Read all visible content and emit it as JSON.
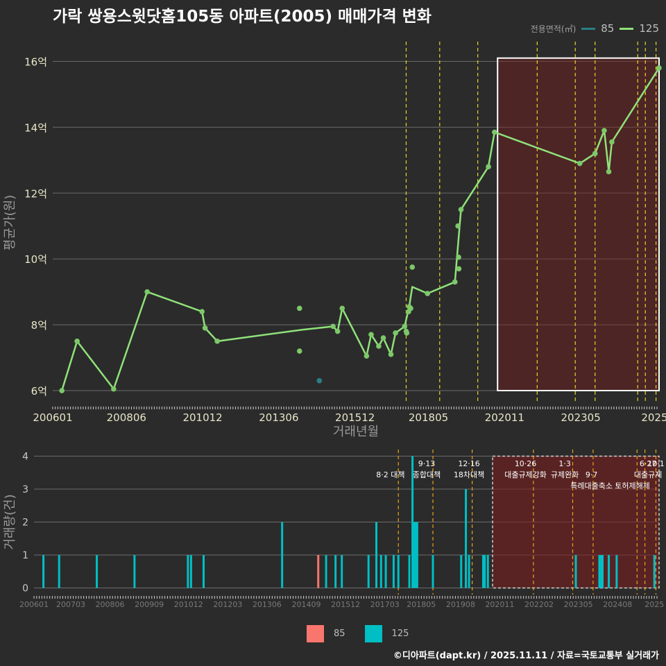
{
  "title": "가락 쌍용스윗닷홈105동 아파트(2005) 매매가격 변화",
  "footer": "©디아파트(dapt.kr) / 2025.11.11 / 자료=국토교통부 실거래가",
  "legend": {
    "title": "전용면적(㎡)",
    "items": [
      {
        "label": "85",
        "color": "#2a7f86"
      },
      {
        "label": "125",
        "color": "#90e27a"
      }
    ]
  },
  "bottom_legend": {
    "items": [
      {
        "label": "85",
        "color": "#f8766d"
      },
      {
        "label": "125",
        "color": "#00bfc4"
      }
    ]
  },
  "chart_data": [
    {
      "type": "line",
      "title": "가락 쌍용스윗닷홈105동 아파트(2005) 매매가격 변화",
      "xlabel": "거래년월",
      "ylabel": "평균가(원)",
      "xlim": [
        2006.0,
        2025.9
      ],
      "ylim": [
        5.6,
        16.6
      ],
      "x_ticks": [
        {
          "v": 2006.0,
          "label": "200601"
        },
        {
          "v": 2008.42,
          "label": "200806"
        },
        {
          "v": 2010.92,
          "label": "201012"
        },
        {
          "v": 2013.42,
          "label": "201306"
        },
        {
          "v": 2015.92,
          "label": "201512"
        },
        {
          "v": 2018.33,
          "label": "201805"
        },
        {
          "v": 2020.83,
          "label": "202011"
        },
        {
          "v": 2023.33,
          "label": "202305"
        },
        {
          "v": 2025.75,
          "label": "2025"
        }
      ],
      "y_ticks": [
        {
          "v": 6,
          "label": "6억"
        },
        {
          "v": 8,
          "label": "8억"
        },
        {
          "v": 10,
          "label": "10억"
        },
        {
          "v": 12,
          "label": "12억"
        },
        {
          "v": 14,
          "label": "14억"
        },
        {
          "v": 16,
          "label": "16억"
        }
      ],
      "series": [
        {
          "name": "125",
          "color": "#90e27a",
          "line": [
            [
              2006.3,
              6.0
            ],
            [
              2006.8,
              7.5
            ],
            [
              2008.0,
              6.05
            ],
            [
              2009.1,
              9.0
            ],
            [
              2010.9,
              8.4
            ],
            [
              2011.0,
              7.9
            ],
            [
              2011.4,
              7.5
            ],
            [
              2014.2,
              7.85
            ],
            [
              2015.2,
              7.95
            ],
            [
              2015.35,
              7.8
            ],
            [
              2015.5,
              8.5
            ],
            [
              2016.3,
              7.05
            ],
            [
              2016.45,
              7.7
            ],
            [
              2016.7,
              7.35
            ],
            [
              2016.85,
              7.6
            ],
            [
              2017.1,
              7.1
            ],
            [
              2017.25,
              7.75
            ],
            [
              2017.55,
              7.95
            ],
            [
              2017.7,
              8.55
            ],
            [
              2017.8,
              9.15
            ],
            [
              2018.3,
              8.95
            ],
            [
              2019.2,
              9.3
            ],
            [
              2019.4,
              11.5
            ],
            [
              2020.3,
              12.8
            ],
            [
              2020.5,
              13.85
            ],
            [
              2023.3,
              12.9
            ],
            [
              2023.8,
              13.2
            ],
            [
              2024.1,
              13.9
            ],
            [
              2024.25,
              12.65
            ],
            [
              2024.35,
              13.55
            ],
            [
              2025.9,
              15.8
            ]
          ],
          "points": [
            [
              2006.3,
              6.0
            ],
            [
              2006.8,
              7.5
            ],
            [
              2008.0,
              6.05
            ],
            [
              2009.1,
              9.0
            ],
            [
              2010.9,
              8.4
            ],
            [
              2011.0,
              7.9
            ],
            [
              2011.4,
              7.5
            ],
            [
              2014.1,
              8.5
            ],
            [
              2014.1,
              7.2
            ],
            [
              2015.2,
              7.95
            ],
            [
              2015.35,
              7.8
            ],
            [
              2015.5,
              8.5
            ],
            [
              2016.3,
              7.05
            ],
            [
              2016.45,
              7.7
            ],
            [
              2016.7,
              7.35
            ],
            [
              2016.85,
              7.6
            ],
            [
              2017.1,
              7.1
            ],
            [
              2017.25,
              7.75
            ],
            [
              2017.55,
              7.95
            ],
            [
              2017.6,
              7.8
            ],
            [
              2017.62,
              7.75
            ],
            [
              2017.68,
              8.4
            ],
            [
              2017.7,
              8.55
            ],
            [
              2017.75,
              8.5
            ],
            [
              2017.8,
              9.75
            ],
            [
              2018.3,
              8.95
            ],
            [
              2019.2,
              9.3
            ],
            [
              2019.3,
              11.0
            ],
            [
              2019.32,
              10.05
            ],
            [
              2019.33,
              9.7
            ],
            [
              2019.4,
              11.5
            ],
            [
              2020.3,
              12.8
            ],
            [
              2020.5,
              13.85
            ],
            [
              2023.3,
              12.9
            ],
            [
              2023.8,
              13.2
            ],
            [
              2024.1,
              13.9
            ],
            [
              2024.25,
              12.65
            ],
            [
              2024.35,
              13.55
            ],
            [
              2025.9,
              15.8
            ]
          ]
        },
        {
          "name": "85",
          "color": "#2a7f86",
          "points": [
            [
              2014.75,
              6.3
            ]
          ]
        }
      ],
      "vlines": [
        2017.6,
        2018.7,
        2019.95,
        2021.9,
        2023.15,
        2023.8,
        2025.2,
        2025.45,
        2025.8
      ],
      "highlight": {
        "x": [
          2020.6,
          2025.9
        ],
        "y": [
          6.0,
          16.1
        ]
      }
    },
    {
      "type": "bar",
      "ylabel": "거래량(건)",
      "xlim": [
        2006.0,
        2025.9
      ],
      "ylim": [
        -0.2,
        4.2
      ],
      "x_ticks": [
        {
          "v": 2006.0,
          "label": "200601"
        },
        {
          "v": 2007.17,
          "label": "200703"
        },
        {
          "v": 2008.42,
          "label": "200806"
        },
        {
          "v": 2009.67,
          "label": "200909"
        },
        {
          "v": 2010.92,
          "label": "201012"
        },
        {
          "v": 2012.17,
          "label": "201203"
        },
        {
          "v": 2013.42,
          "label": "201306"
        },
        {
          "v": 2014.67,
          "label": "201409"
        },
        {
          "v": 2015.92,
          "label": "201512"
        },
        {
          "v": 2017.17,
          "label": "201703"
        },
        {
          "v": 2018.33,
          "label": "201805"
        },
        {
          "v": 2019.58,
          "label": "201908"
        },
        {
          "v": 2020.83,
          "label": "202011"
        },
        {
          "v": 2022.08,
          "label": "202202"
        },
        {
          "v": 2023.33,
          "label": "202305"
        },
        {
          "v": 2024.58,
          "label": "202408"
        },
        {
          "v": 2025.75,
          "label": "2025"
        }
      ],
      "y_ticks": [
        {
          "v": 0,
          "label": "0"
        },
        {
          "v": 1,
          "label": "1"
        },
        {
          "v": 2,
          "label": "2"
        },
        {
          "v": 3,
          "label": "3"
        },
        {
          "v": 4,
          "label": "4"
        }
      ],
      "series": [
        {
          "name": "85",
          "color": "#f8766d",
          "bars": [
            [
              2015.05,
              1
            ]
          ]
        },
        {
          "name": "125",
          "color": "#00bfc4",
          "bars": [
            [
              2006.3,
              1
            ],
            [
              2006.8,
              1
            ],
            [
              2008.0,
              1
            ],
            [
              2009.2,
              1
            ],
            [
              2010.9,
              1
            ],
            [
              2011.0,
              1
            ],
            [
              2011.4,
              1
            ],
            [
              2013.9,
              2
            ],
            [
              2015.3,
              1
            ],
            [
              2015.6,
              1
            ],
            [
              2015.8,
              1
            ],
            [
              2016.65,
              1
            ],
            [
              2016.9,
              2
            ],
            [
              2017.05,
              1
            ],
            [
              2017.2,
              1
            ],
            [
              2017.45,
              1
            ],
            [
              2017.6,
              1
            ],
            [
              2017.95,
              1
            ],
            [
              2018.05,
              4
            ],
            [
              2018.1,
              2
            ],
            [
              2018.15,
              2
            ],
            [
              2018.2,
              2
            ],
            [
              2018.7,
              1
            ],
            [
              2019.6,
              1
            ],
            [
              2019.75,
              3
            ],
            [
              2019.85,
              1
            ],
            [
              2020.3,
              1
            ],
            [
              2020.35,
              1
            ],
            [
              2020.45,
              1
            ],
            [
              2023.25,
              1
            ],
            [
              2024.0,
              1
            ],
            [
              2024.05,
              1
            ],
            [
              2024.1,
              1
            ],
            [
              2024.3,
              1
            ],
            [
              2024.55,
              1
            ],
            [
              2025.75,
              1
            ]
          ]
        }
      ],
      "vlines": [
        2017.6,
        2018.7,
        2019.95,
        2021.9,
        2023.15,
        2023.8,
        2025.2,
        2025.45,
        2025.8
      ],
      "highlight": {
        "x": [
          2020.6,
          2025.9
        ],
        "y": [
          0,
          4
        ]
      },
      "annotations": [
        {
          "x": 2017.35,
          "row": 1,
          "text": "8·2 대책"
        },
        {
          "x": 2018.5,
          "row": 0,
          "text": "9·13"
        },
        {
          "x": 2018.5,
          "row": 1,
          "text": "종합대책"
        },
        {
          "x": 2019.85,
          "row": 0,
          "text": "12·16"
        },
        {
          "x": 2019.85,
          "row": 1,
          "text": "18차대책"
        },
        {
          "x": 2021.65,
          "row": 0,
          "text": "10·26"
        },
        {
          "x": 2021.65,
          "row": 1,
          "text": "대출규제강화"
        },
        {
          "x": 2022.9,
          "row": 0,
          "text": "1·3"
        },
        {
          "x": 2022.9,
          "row": 1,
          "text": "규제완화"
        },
        {
          "x": 2023.75,
          "row": 1,
          "text": "9·7"
        },
        {
          "x": 2023.75,
          "row": 2,
          "text": "특례대출축소"
        },
        {
          "x": 2025.05,
          "row": 2,
          "text": "토허제해제"
        },
        {
          "x": 2025.55,
          "row": 0,
          "text": "6·27"
        },
        {
          "x": 2025.8,
          "row": 0,
          "text": "10·1"
        },
        {
          "x": 2025.55,
          "row": 1,
          "text": "대출규제"
        }
      ]
    }
  ]
}
